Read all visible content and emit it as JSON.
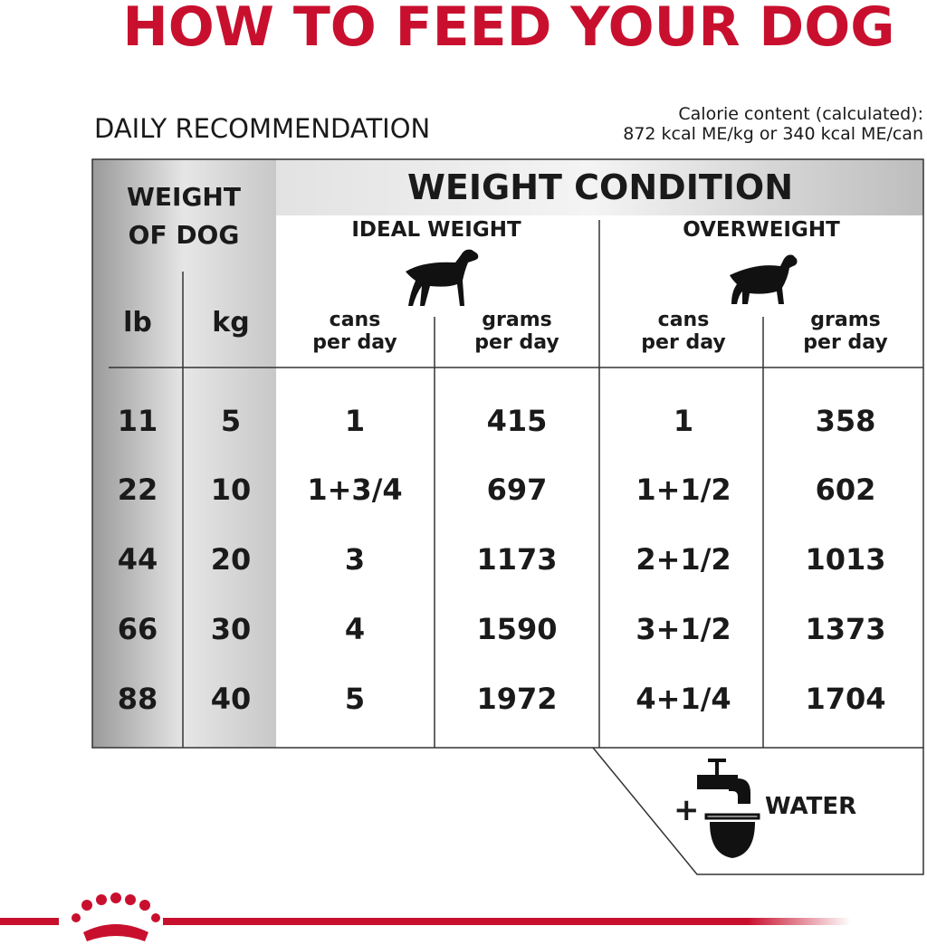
{
  "title": "HOW TO FEED YOUR DOG",
  "subtitle": "DAILY RECOMMENDATION",
  "calorie_note": [
    "Calorie content (calculated):",
    "872 kcal ME/kg or 340 kcal ME/can"
  ],
  "table": {
    "header": "WEIGHT CONDITION",
    "weight_header": [
      "WEIGHT",
      "OF DOG"
    ],
    "groups": [
      "IDEAL WEIGHT",
      "OVERWEIGHT"
    ],
    "columns": [
      [
        "lb"
      ],
      [
        "kg"
      ],
      [
        "cans",
        "per day"
      ],
      [
        "grams",
        "per day"
      ],
      [
        "cans",
        "per day"
      ],
      [
        "grams",
        "per day"
      ]
    ],
    "rows": [
      [
        11,
        5,
        "1",
        415,
        "1",
        358
      ],
      [
        22,
        10,
        "1+3/4",
        697,
        "1+1/2",
        602
      ],
      [
        44,
        20,
        "3",
        1173,
        "2+1/2",
        1013
      ],
      [
        66,
        30,
        "4",
        1590,
        "3+1/2",
        1373
      ],
      [
        88,
        40,
        "5",
        1972,
        "4+1/4",
        1704
      ]
    ]
  },
  "water": {
    "plus": "+",
    "label": "WATER"
  }
}
